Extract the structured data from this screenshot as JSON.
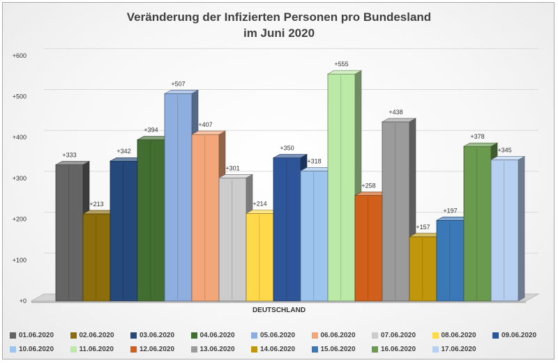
{
  "chart_data": {
    "type": "bar",
    "title": "Veränderung der Infizierten Personen pro Bundesland",
    "subtitle": "im Juni 2020",
    "categories": [
      "DEUTSCHLAND"
    ],
    "ylim": [
      0,
      600
    ],
    "yticks": [
      "+0",
      "+100",
      "+200",
      "+300",
      "+400",
      "+500",
      "+600"
    ],
    "grid": true,
    "legend_position": "bottom",
    "series": [
      {
        "name": "01.06.2020",
        "value": 333,
        "label": "+333",
        "color": "#646464"
      },
      {
        "name": "02.06.2020",
        "value": 213,
        "label": "+213",
        "color": "#8b6d0b"
      },
      {
        "name": "03.06.2020",
        "value": 342,
        "label": "+342",
        "color": "#24497a"
      },
      {
        "name": "04.06.2020",
        "value": 394,
        "label": "+394",
        "color": "#426e31"
      },
      {
        "name": "05.06.2020",
        "value": 507,
        "label": "+507",
        "color": "#8eaee0"
      },
      {
        "name": "06.06.2020",
        "value": 407,
        "label": "+407",
        "color": "#f3a679"
      },
      {
        "name": "07.06.2020",
        "value": 301,
        "label": "+301",
        "color": "#cccccc"
      },
      {
        "name": "08.06.2020",
        "value": 214,
        "label": "+214",
        "color": "#ffd94a"
      },
      {
        "name": "09.06.2020",
        "value": 350,
        "label": "+350",
        "color": "#2e5598"
      },
      {
        "name": "10.06.2020",
        "value": 318,
        "label": "+318",
        "color": "#9dc4ec"
      },
      {
        "name": "11.06.2020",
        "value": 555,
        "label": "+555",
        "color": "#bbeaa6"
      },
      {
        "name": "12.06.2020",
        "value": 258,
        "label": "+258",
        "color": "#d05f1b"
      },
      {
        "name": "13.06.2020",
        "value": 438,
        "label": "+438",
        "color": "#9b9b9b"
      },
      {
        "name": "14.06.2020",
        "value": 157,
        "label": "+157",
        "color": "#c0960d"
      },
      {
        "name": "15.06.2020",
        "value": 197,
        "label": "+197",
        "color": "#3a78b8"
      },
      {
        "name": "16.06.2020",
        "value": 378,
        "label": "+378",
        "color": "#6a9a4e"
      },
      {
        "name": "17.06.2020",
        "value": 345,
        "label": "+345",
        "color": "#b7cff0"
      }
    ]
  }
}
